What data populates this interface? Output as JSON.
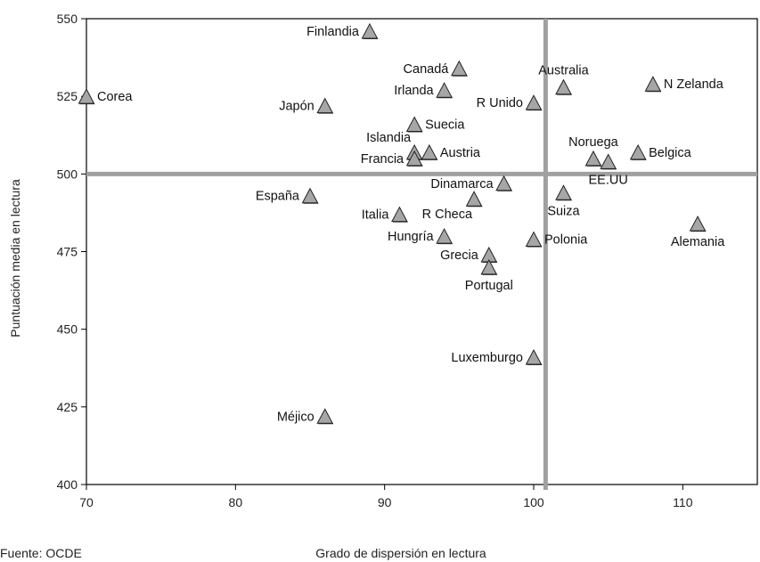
{
  "chart_data": {
    "type": "scatter",
    "title": "",
    "xlabel": "Grado de dispersión en lectura",
    "ylabel": "Puntuación media en lectura",
    "source": "Fuente: OCDE",
    "xlim": [
      70,
      115
    ],
    "ylim": [
      400,
      550
    ],
    "xticks": [
      70,
      80,
      90,
      100,
      110
    ],
    "yticks": [
      400,
      425,
      450,
      475,
      500,
      525,
      550
    ],
    "reference_lines": {
      "x": 100.8,
      "y": 500
    },
    "grid": false,
    "marker": "triangle",
    "colors": {
      "marker_fill": "#a6a6a6",
      "marker_stroke": "#222222",
      "reference_line": "#a0a0a0",
      "frame": "#000000"
    },
    "points": [
      {
        "label": "Finlandia",
        "x": 89,
        "y": 546,
        "label_pos": "left"
      },
      {
        "label": "Canadá",
        "x": 95,
        "y": 534,
        "label_pos": "left"
      },
      {
        "label": "Australia",
        "x": 102,
        "y": 528,
        "label_pos": "above"
      },
      {
        "label": "N Zelanda",
        "x": 108,
        "y": 529,
        "label_pos": "right"
      },
      {
        "label": "Corea",
        "x": 70,
        "y": 525,
        "label_pos": "right"
      },
      {
        "label": "Irlanda",
        "x": 94,
        "y": 527,
        "label_pos": "left"
      },
      {
        "label": "Japón",
        "x": 86,
        "y": 522,
        "label_pos": "left"
      },
      {
        "label": "R Unido",
        "x": 100,
        "y": 523,
        "label_pos": "left"
      },
      {
        "label": "Suecia",
        "x": 92,
        "y": 516,
        "label_pos": "right"
      },
      {
        "label": "Islandia",
        "x": 92,
        "y": 507,
        "label_pos": "upper-left"
      },
      {
        "label": "Francia",
        "x": 92,
        "y": 505,
        "label_pos": "left"
      },
      {
        "label": "Austria",
        "x": 93,
        "y": 507,
        "label_pos": "right"
      },
      {
        "label": "Noruega",
        "x": 104,
        "y": 505,
        "label_pos": "above"
      },
      {
        "label": "Belgica",
        "x": 107,
        "y": 507,
        "label_pos": "right"
      },
      {
        "label": "EE.UU",
        "x": 105,
        "y": 504,
        "label_pos": "below"
      },
      {
        "label": "Dinamarca",
        "x": 98,
        "y": 497,
        "label_pos": "left"
      },
      {
        "label": "España",
        "x": 85,
        "y": 493,
        "label_pos": "left"
      },
      {
        "label": "Suiza",
        "x": 102,
        "y": 494,
        "label_pos": "below"
      },
      {
        "label": "R Checa",
        "x": 96,
        "y": 492,
        "label_pos": "below-left"
      },
      {
        "label": "Italia",
        "x": 91,
        "y": 487,
        "label_pos": "left"
      },
      {
        "label": "Alemania",
        "x": 111,
        "y": 484,
        "label_pos": "below"
      },
      {
        "label": "Hungría",
        "x": 94,
        "y": 480,
        "label_pos": "left"
      },
      {
        "label": "Polonia",
        "x": 100,
        "y": 479,
        "label_pos": "right"
      },
      {
        "label": "Grecia",
        "x": 97,
        "y": 474,
        "label_pos": "left"
      },
      {
        "label": "Portugal",
        "x": 97,
        "y": 470,
        "label_pos": "below"
      },
      {
        "label": "Luxemburgo",
        "x": 100,
        "y": 441,
        "label_pos": "left"
      },
      {
        "label": "Méjico",
        "x": 86,
        "y": 422,
        "label_pos": "left"
      }
    ]
  }
}
